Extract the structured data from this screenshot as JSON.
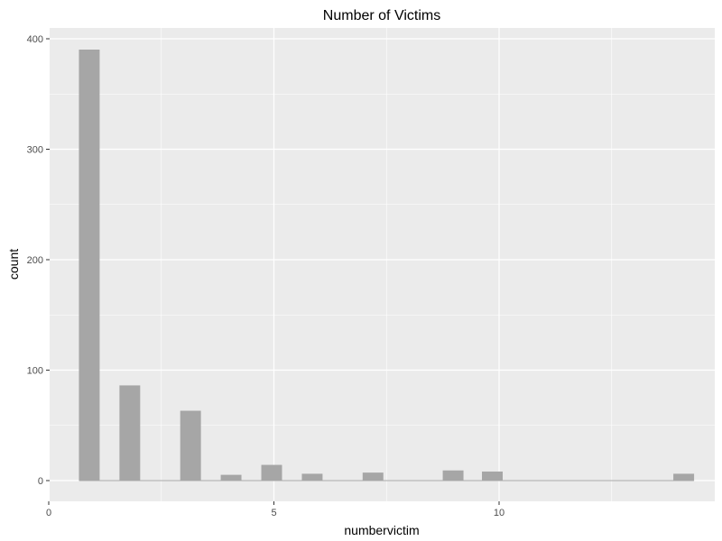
{
  "chart_data": {
    "type": "bar",
    "title": "Number of Victims",
    "xlabel": "numbervictim",
    "ylabel": "count",
    "xlim": [
      0,
      14.9
    ],
    "ylim": [
      0,
      420
    ],
    "x_ticks": [
      0,
      5,
      10
    ],
    "y_ticks": [
      0,
      100,
      200,
      300,
      400
    ],
    "x_minor_ticks": [
      2.5,
      7.5,
      12.5
    ],
    "y_minor_ticks": [
      50,
      150,
      250,
      350
    ],
    "bar_width": 0.45,
    "bars": [
      {
        "x": 0.9,
        "value": 390
      },
      {
        "x": 1.8,
        "value": 86
      },
      {
        "x": 3.15,
        "value": 63
      },
      {
        "x": 4.05,
        "value": 5
      },
      {
        "x": 4.95,
        "value": 14
      },
      {
        "x": 5.85,
        "value": 6
      },
      {
        "x": 7.2,
        "value": 7
      },
      {
        "x": 8.98,
        "value": 9
      },
      {
        "x": 9.85,
        "value": 8
      },
      {
        "x": 14.1,
        "value": 6
      }
    ],
    "grid": true,
    "colors": {
      "panel": "#ebebeb",
      "grid_major": "#ffffff",
      "bar_fill": "#a6a6a6",
      "bar_stroke": "#a6a6a6"
    }
  }
}
